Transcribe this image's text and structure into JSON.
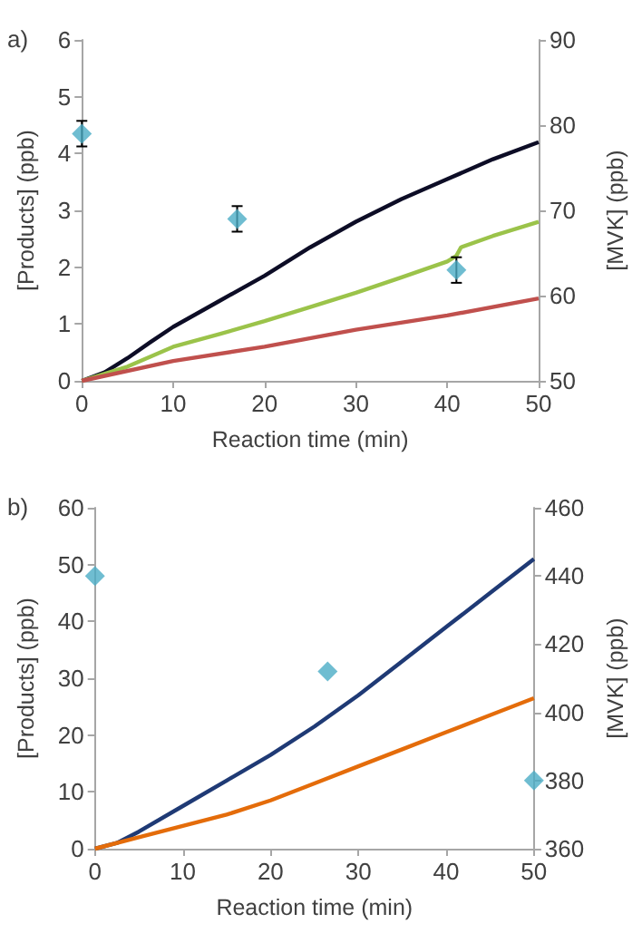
{
  "chart_data": [
    {
      "type": "line",
      "xlabel": "Reaction time (min)",
      "ylabel": "[Products] (ppb)",
      "y2label": "[MVK] (ppb)",
      "annotations": [
        "a)"
      ],
      "xlim": [
        0,
        50
      ],
      "xticks": [
        0,
        10,
        20,
        30,
        40,
        50
      ],
      "ylim": [
        0,
        6
      ],
      "yticks": [
        0,
        1,
        2,
        3,
        4,
        5,
        6
      ],
      "y2lim": [
        50,
        90
      ],
      "y2ticks": [
        50,
        60,
        70,
        80,
        90
      ],
      "grid": false,
      "series": [
        {
          "color": "#0d0d26",
          "marker": "none",
          "x": [
            0,
            2.5,
            5,
            7.5,
            10,
            15,
            20,
            25,
            30,
            35,
            40,
            45,
            50
          ],
          "values": [
            0,
            0.15,
            0.4,
            0.68,
            0.95,
            1.4,
            1.85,
            2.35,
            2.8,
            3.2,
            3.55,
            3.9,
            4.2
          ]
        },
        {
          "color": "#9bc34a",
          "marker": "none",
          "x": [
            0,
            5,
            10,
            15,
            20,
            25,
            30,
            35,
            40,
            41,
            41.5,
            45,
            50
          ],
          "values": [
            0,
            0.25,
            0.6,
            0.82,
            1.05,
            1.3,
            1.55,
            1.82,
            2.1,
            2.2,
            2.35,
            2.55,
            2.8
          ]
        },
        {
          "color": "#c0504d",
          "marker": "none",
          "x": [
            0,
            10,
            20,
            30,
            40,
            50
          ],
          "values": [
            0,
            0.35,
            0.6,
            0.9,
            1.15,
            1.45
          ]
        },
        {
          "type": "scatter",
          "axis": "y2",
          "color": "#4bacc6",
          "marker": "diamond",
          "x": [
            0,
            17,
            41
          ],
          "values": [
            79,
            69,
            63
          ],
          "errors": [
            1.5,
            1.5,
            1.5
          ]
        }
      ]
    },
    {
      "type": "line",
      "xlabel": "Reaction time (min)",
      "ylabel": "[Products] (ppb)",
      "y2label": "[MVK] (ppb)",
      "annotations": [
        "b)"
      ],
      "xlim": [
        0,
        50
      ],
      "xticks": [
        0,
        10,
        20,
        30,
        40,
        50
      ],
      "ylim": [
        0,
        60
      ],
      "yticks": [
        0,
        10,
        20,
        30,
        40,
        50,
        60
      ],
      "y2lim": [
        360,
        460
      ],
      "y2ticks": [
        360,
        380,
        400,
        420,
        440,
        460
      ],
      "grid": false,
      "series": [
        {
          "color": "#1f3a75",
          "marker": "none",
          "x": [
            0,
            2.5,
            5,
            10,
            15,
            20,
            25,
            30,
            35,
            40,
            45,
            50
          ],
          "values": [
            0,
            1,
            3,
            7.5,
            12,
            16.5,
            21.5,
            27,
            33,
            39,
            45,
            51
          ]
        },
        {
          "color": "#e46c0a",
          "marker": "none",
          "x": [
            0,
            5,
            10,
            15,
            20,
            25,
            30,
            35,
            40,
            45,
            50
          ],
          "values": [
            0,
            2,
            4,
            6,
            8.5,
            11.5,
            14.5,
            17.5,
            20.5,
            23.5,
            26.5
          ]
        },
        {
          "type": "scatter",
          "axis": "y2",
          "color": "#4bacc6",
          "marker": "diamond",
          "x": [
            0,
            26.5,
            50
          ],
          "values": [
            440,
            412,
            380
          ]
        }
      ]
    }
  ]
}
